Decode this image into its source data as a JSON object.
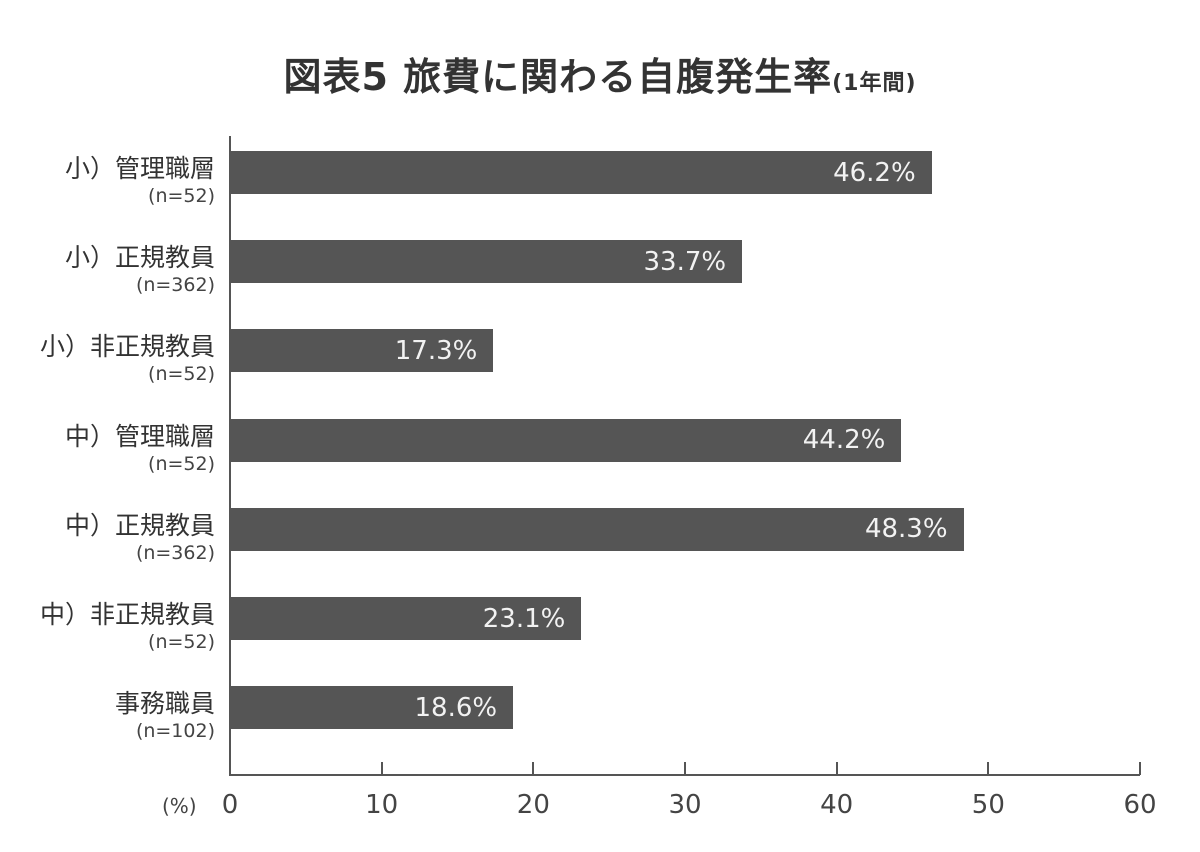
{
  "chart_data": {
    "type": "bar",
    "orientation": "horizontal",
    "title": "図表5 旅費に関わる自腹発生率",
    "subtitle": "(1年間)",
    "xlabel": "(%)",
    "ylabel": "",
    "xlim": [
      0,
      60
    ],
    "xticks": [
      "0",
      "10",
      "20",
      "30",
      "40",
      "50",
      "60"
    ],
    "grid": false,
    "legend": null,
    "bar_color": "#555555",
    "categories": [
      {
        "label": "小）管理職層",
        "n": "(n=52)"
      },
      {
        "label": "小）正規教員",
        "n": "(n=362)"
      },
      {
        "label": "小）非正規教員",
        "n": "(n=52)"
      },
      {
        "label": "中）管理職層",
        "n": "(n=52)"
      },
      {
        "label": "中）正規教員",
        "n": "(n=362)"
      },
      {
        "label": "中）非正規教員",
        "n": "(n=52)"
      },
      {
        "label": "事務職員",
        "n": "(n=102)"
      }
    ],
    "values": [
      46.2,
      33.7,
      17.3,
      44.2,
      48.3,
      23.1,
      18.6
    ],
    "value_labels": [
      "46.2%",
      "33.7%",
      "17.3%",
      "44.2%",
      "48.3%",
      "23.1%",
      "18.6%"
    ]
  }
}
